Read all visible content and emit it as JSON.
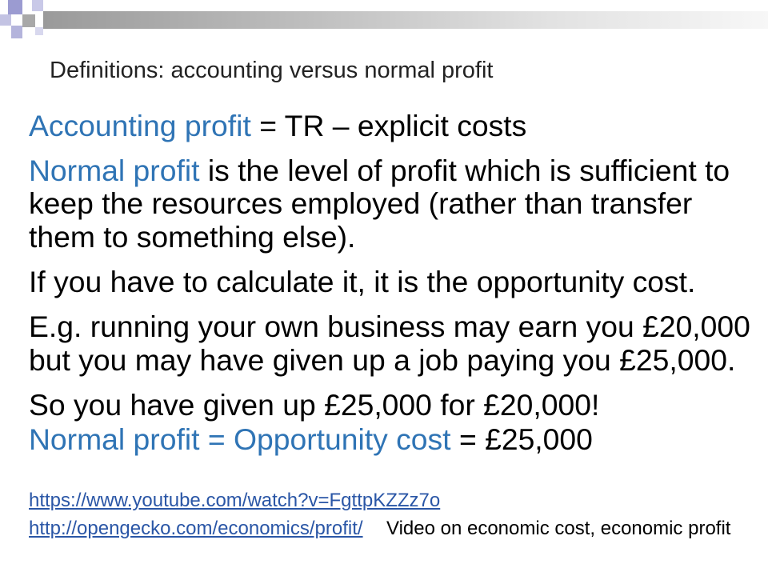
{
  "slide": {
    "title": "Definitions: accounting versus normal profit",
    "accounting": {
      "term": "Accounting profit",
      "definition": "= TR – explicit costs"
    },
    "normal_profit": {
      "term": "Normal profit",
      "lines": [
        "is the level of profit which is sufficient to",
        "keep the resources employed (rather than transfer",
        "them to something else)."
      ]
    },
    "opportunity_cost": "If you have to calculate it, it is the opportunity cost.",
    "example": [
      "E.g. running your own business may earn you £20,000",
      "but you may have given up a job paying you £25,000."
    ],
    "conclusion": {
      "line": "So you have given up £25,000 for £20,000!",
      "term": "Normal profit = Opportunity cost",
      "value": "= £25,000"
    },
    "links": [
      {
        "url": "https://www.youtube.com/watch?v=FgttpKZZz7o"
      },
      {
        "url": "http://opengecko.com/economics/profit/",
        "caption": "Video on economic cost, economic profit"
      }
    ]
  },
  "colors": {
    "term": "#2f74b5",
    "link": "#2a56a6",
    "text": "#000000",
    "title": "#222222"
  }
}
